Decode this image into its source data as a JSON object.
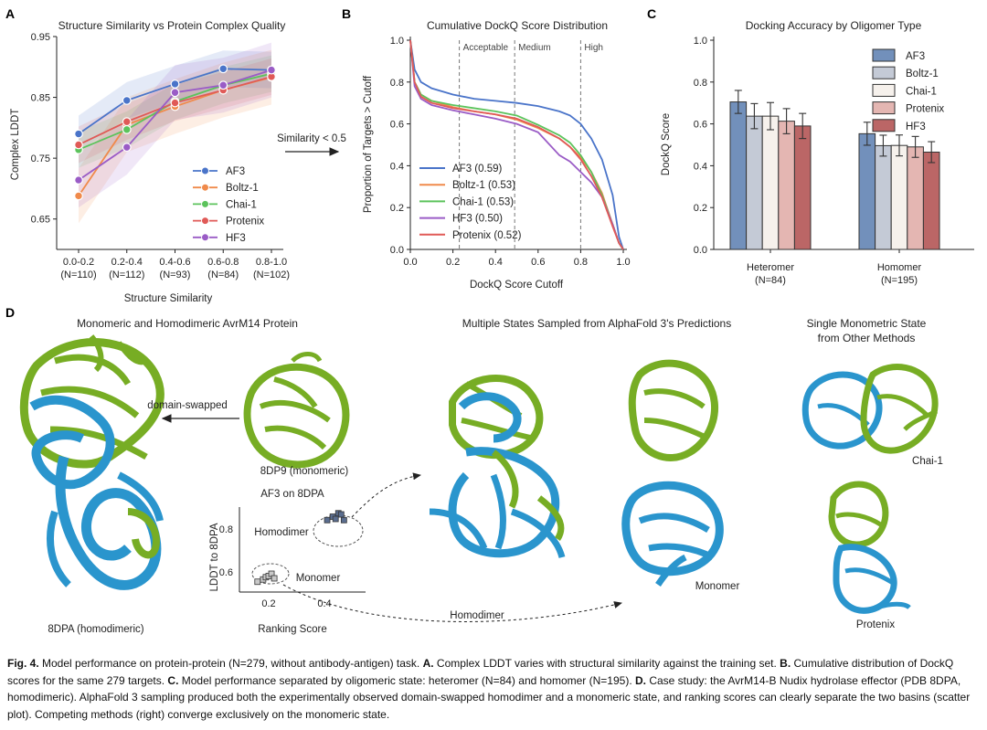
{
  "colors": {
    "AF3": "#4a74c9",
    "Boltz-1": "#f08a4b",
    "Chai-1": "#5cc35c",
    "Protenix": "#e05a57",
    "HF3": "#9a5cc6",
    "barAF3": "#7290bb",
    "barBoltz": "#c4cad6",
    "barChai": "#f6f1ec",
    "barProtenix": "#e4b6b2",
    "barHF3": "#bb6666",
    "protein_green": "#77ad24",
    "protein_blue": "#2a95cd"
  },
  "panelA": {
    "letter": "A",
    "title": "Structure Similarity vs Protein Complex Quality",
    "ylabel": "Complex LDDT",
    "xlabel": "Structure Similarity",
    "annotation": "Similarity < 0.5"
  },
  "panelB": {
    "letter": "B",
    "title": "Cumulative DockQ Score Distribution",
    "ylabel": "Proportion of Targets > Cutoff",
    "xlabel": "DockQ Score Cutoff",
    "thresholds": [
      {
        "label": "Acceptable",
        "x": 0.23
      },
      {
        "label": "Medium",
        "x": 0.49
      },
      {
        "label": "High",
        "x": 0.8
      }
    ]
  },
  "panelC": {
    "letter": "C",
    "title": "Docking Accuracy by Oligomer Type",
    "ylabel": "DockQ Score"
  },
  "panelD": {
    "letter": "D",
    "title_left": "Monomeric and Homodimeric AvrM14 Protein",
    "title_mid": "Multiple States Sampled from AlphaFold 3's Predictions",
    "title_right_1": "Single Monometric State",
    "title_right_2": "from Other Methods",
    "label_8dpa": "8DPA (homodimeric)",
    "label_8dp9": "8DP9 (monomeric)",
    "label_domain_swapped": "domain-swapped",
    "scatter_title": "AF3 on 8DPA",
    "scatter_ylabel": "LDDT to 8DPA",
    "scatter_xlabel": "Ranking Score",
    "scatter_yticks": [
      "0.8",
      "0.6"
    ],
    "scatter_xticks": [
      "0.2",
      "0.4"
    ],
    "label_homodimer_cluster": "Homodimer",
    "label_monomer_cluster": "Monomer",
    "label_homodimer_struct": "Homodimer",
    "label_monomer_struct": "Monomer",
    "label_chai": "Chai-1",
    "label_protenix": "Protenix"
  },
  "caption": {
    "fig": "Fig. 4.",
    "intro": " Model performance on protein-protein (N=279, without antibody-antigen) task. ",
    "a_label": "A.",
    "a_text": " Complex LDDT varies with structural similarity against the training set. ",
    "b_label": "B.",
    "b_text": " Cumulative distribution of DockQ scores for the same 279 targets. ",
    "c_label": "C.",
    "c_text": " Model performance separated by oligomeric state: heteromer (N=84) and homomer (N=195). ",
    "d_label": "D.",
    "d_text": " Case study: the AvrM14-B Nudix hydrolase effector (PDB 8DPA, homodimeric).  AlphaFold 3 sampling produced both the experimentally observed domain-swapped homodimer and a monomeric state, and ranking scores can clearly separate the two basins (scatter plot). Competing methods (right) converge exclusively on the monomeric state."
  },
  "chart_data": [
    {
      "type": "line",
      "title": "Structure Similarity vs Protein Complex Quality",
      "xlabel": "Structure Similarity",
      "ylabel": "Complex LDDT",
      "categories": [
        "0.0-0.2",
        "0.2-0.4",
        "0.4-0.6",
        "0.6-0.8",
        "0.8-1.0"
      ],
      "category_counts": [
        "(N=110)",
        "(N=112)",
        "(N=93)",
        "(N=84)",
        "(N=102)"
      ],
      "ylim": [
        0.6,
        0.95
      ],
      "yticks": [
        0.65,
        0.75,
        0.85,
        0.95
      ],
      "yticklabels": [
        "0.65",
        "0.75",
        "0.85",
        "0.95"
      ],
      "series": [
        {
          "name": "AF3",
          "values": [
            0.79,
            0.845,
            0.872,
            0.897,
            0.895
          ],
          "band": 0.03
        },
        {
          "name": "Boltz-1",
          "values": [
            0.688,
            0.805,
            0.835,
            0.862,
            0.883
          ],
          "band": 0.045
        },
        {
          "name": "Chai-1",
          "values": [
            0.764,
            0.797,
            0.843,
            0.87,
            0.889
          ],
          "band": 0.03
        },
        {
          "name": "Protenix",
          "values": [
            0.772,
            0.81,
            0.841,
            0.862,
            0.884
          ],
          "band": 0.03
        },
        {
          "name": "HF3",
          "values": [
            0.714,
            0.768,
            0.858,
            0.87,
            0.895
          ],
          "band": 0.045
        }
      ]
    },
    {
      "type": "line",
      "title": "Cumulative DockQ Score Distribution",
      "xlabel": "DockQ Score Cutoff",
      "ylabel": "Proportion of Targets > Cutoff",
      "xlim": [
        0,
        1
      ],
      "ylim": [
        0,
        1
      ],
      "xticks": [
        "0.0",
        "0.2",
        "0.4",
        "0.6",
        "0.8",
        "1.0"
      ],
      "yticks": [
        "0.0",
        "0.2",
        "0.4",
        "0.6",
        "0.8",
        "1.0"
      ],
      "series": [
        {
          "name": "AF3",
          "legend": "AF3 (0.59)",
          "x": [
            0,
            0.02,
            0.05,
            0.1,
            0.2,
            0.3,
            0.4,
            0.5,
            0.6,
            0.7,
            0.75,
            0.8,
            0.85,
            0.9,
            0.95,
            0.98,
            1.0
          ],
          "y": [
            1.0,
            0.86,
            0.8,
            0.77,
            0.74,
            0.72,
            0.71,
            0.7,
            0.685,
            0.66,
            0.64,
            0.6,
            0.53,
            0.43,
            0.26,
            0.06,
            0.0
          ]
        },
        {
          "name": "Boltz-1",
          "legend": "Boltz-1 (0.53)",
          "x": [
            0,
            0.02,
            0.05,
            0.1,
            0.2,
            0.3,
            0.4,
            0.5,
            0.6,
            0.7,
            0.75,
            0.8,
            0.85,
            0.9,
            0.95,
            0.98,
            1.0
          ],
          "y": [
            1.0,
            0.8,
            0.74,
            0.71,
            0.68,
            0.66,
            0.645,
            0.62,
            0.58,
            0.53,
            0.49,
            0.44,
            0.37,
            0.27,
            0.12,
            0.03,
            0.0
          ]
        },
        {
          "name": "Chai-1",
          "legend": "Chai-1 (0.53)",
          "x": [
            0,
            0.02,
            0.05,
            0.1,
            0.2,
            0.3,
            0.4,
            0.5,
            0.6,
            0.7,
            0.75,
            0.8,
            0.85,
            0.9,
            0.95,
            0.98,
            1.0
          ],
          "y": [
            1.0,
            0.8,
            0.74,
            0.71,
            0.69,
            0.675,
            0.66,
            0.64,
            0.595,
            0.545,
            0.51,
            0.45,
            0.37,
            0.26,
            0.12,
            0.03,
            0.0
          ]
        },
        {
          "name": "HF3",
          "legend": "HF3 (0.50)",
          "x": [
            0,
            0.02,
            0.05,
            0.1,
            0.2,
            0.3,
            0.4,
            0.5,
            0.6,
            0.7,
            0.75,
            0.8,
            0.85,
            0.9,
            0.95,
            0.98,
            1.0
          ],
          "y": [
            1.0,
            0.78,
            0.72,
            0.69,
            0.665,
            0.645,
            0.625,
            0.6,
            0.56,
            0.45,
            0.42,
            0.37,
            0.32,
            0.25,
            0.12,
            0.03,
            0.0
          ]
        },
        {
          "name": "Protenix",
          "legend": "Protenix (0.52)",
          "x": [
            0,
            0.02,
            0.05,
            0.1,
            0.2,
            0.3,
            0.4,
            0.5,
            0.6,
            0.7,
            0.75,
            0.8,
            0.85,
            0.9,
            0.95,
            0.98,
            1.0
          ],
          "y": [
            1.0,
            0.8,
            0.73,
            0.7,
            0.675,
            0.66,
            0.645,
            0.625,
            0.585,
            0.53,
            0.49,
            0.43,
            0.35,
            0.25,
            0.11,
            0.03,
            0.0
          ]
        }
      ]
    },
    {
      "type": "bar",
      "title": "Docking Accuracy by Oligomer Type",
      "ylabel": "DockQ Score",
      "categories": [
        "Heteromer",
        "Homomer"
      ],
      "category_counts": [
        "(N=84)",
        "(N=195)"
      ],
      "ylim": [
        0,
        1
      ],
      "yticks": [
        "0.0",
        "0.2",
        "0.4",
        "0.6",
        "0.8",
        "1.0"
      ],
      "series": [
        {
          "name": "AF3",
          "values": [
            0.705,
            0.553
          ],
          "err": [
            0.055,
            0.055
          ]
        },
        {
          "name": "Boltz-1",
          "values": [
            0.637,
            0.496
          ],
          "err": [
            0.06,
            0.05
          ]
        },
        {
          "name": "Chai-1",
          "values": [
            0.637,
            0.497
          ],
          "err": [
            0.065,
            0.05
          ]
        },
        {
          "name": "Protenix",
          "values": [
            0.613,
            0.49
          ],
          "err": [
            0.06,
            0.05
          ]
        },
        {
          "name": "HF3",
          "values": [
            0.59,
            0.465
          ],
          "err": [
            0.06,
            0.05
          ]
        }
      ]
    },
    {
      "type": "scatter",
      "title": "AF3 on 8DPA",
      "xlabel": "Ranking Score",
      "ylabel": "LDDT to 8DPA",
      "series": [
        {
          "name": "Homodimer",
          "x": [
            0.41,
            0.43,
            0.44,
            0.45,
            0.46,
            0.47
          ],
          "y": [
            0.835,
            0.85,
            0.84,
            0.865,
            0.86,
            0.835
          ]
        },
        {
          "name": "Monomer",
          "x": [
            0.16,
            0.18,
            0.19,
            0.2,
            0.21,
            0.22
          ],
          "y": [
            0.565,
            0.575,
            0.585,
            0.59,
            0.6,
            0.58
          ]
        }
      ]
    }
  ]
}
